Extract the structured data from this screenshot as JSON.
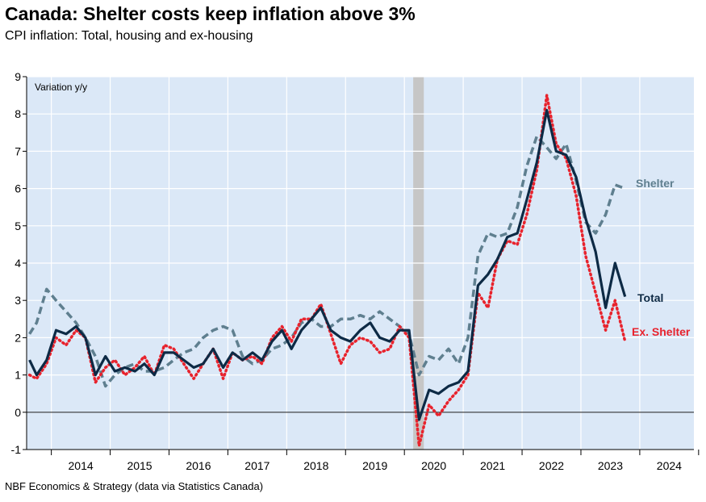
{
  "title": "Canada: Shelter costs keep inflation above 3%",
  "subtitle": "CPI inflation: Total, housing and ex-housing",
  "source": "NBF Economics & Strategy (data via Statistics Canada)",
  "colors": {
    "plot_background": "#dbe8f7",
    "recession_band": "#c6c6c6",
    "total": "#0d2a45",
    "shelter": "#5f7f8f",
    "ex_shelter": "#e8232d"
  },
  "chart_data": {
    "type": "line",
    "unit_label": "Variation y/y",
    "ylim": [
      -1,
      9
    ],
    "yticks": [
      "-1",
      "0",
      "1",
      "2",
      "3",
      "4",
      "5",
      "6",
      "7",
      "8",
      "9"
    ],
    "xlim": [
      2013.58,
      2024.92
    ],
    "xticks": [
      "2014",
      "2015",
      "2016",
      "2017",
      "2018",
      "2019",
      "2020",
      "2021",
      "2022",
      "2023",
      "2024"
    ],
    "grid": true,
    "shaded_period": [
      2020.15,
      2020.33
    ],
    "series": [
      {
        "name": "Total",
        "style": "solid",
        "x": [
          2013.63,
          2013.75,
          2013.92,
          2014.08,
          2014.25,
          2014.42,
          2014.58,
          2014.75,
          2014.92,
          2015.08,
          2015.25,
          2015.42,
          2015.58,
          2015.75,
          2015.92,
          2016.08,
          2016.25,
          2016.42,
          2016.58,
          2016.75,
          2016.92,
          2017.08,
          2017.25,
          2017.42,
          2017.58,
          2017.75,
          2017.92,
          2018.08,
          2018.25,
          2018.42,
          2018.58,
          2018.75,
          2018.92,
          2019.08,
          2019.25,
          2019.42,
          2019.58,
          2019.75,
          2019.92,
          2020.08,
          2020.25,
          2020.42,
          2020.58,
          2020.75,
          2020.92,
          2021.08,
          2021.25,
          2021.42,
          2021.58,
          2021.75,
          2021.92,
          2022.08,
          2022.25,
          2022.42,
          2022.58,
          2022.75,
          2022.92,
          2023.08,
          2023.25,
          2023.42,
          2023.58,
          2023.75
        ],
        "y": [
          1.4,
          1.0,
          1.4,
          2.2,
          2.1,
          2.3,
          2.0,
          1.0,
          1.5,
          1.1,
          1.2,
          1.1,
          1.3,
          1.0,
          1.6,
          1.6,
          1.4,
          1.2,
          1.3,
          1.7,
          1.2,
          1.6,
          1.4,
          1.6,
          1.4,
          1.9,
          2.2,
          1.7,
          2.2,
          2.5,
          2.8,
          2.2,
          2.0,
          1.9,
          2.2,
          2.4,
          2.0,
          1.9,
          2.2,
          2.2,
          -0.2,
          0.6,
          0.5,
          0.7,
          0.8,
          1.1,
          3.4,
          3.7,
          4.1,
          4.7,
          4.8,
          5.7,
          6.7,
          8.1,
          7.0,
          6.9,
          6.3,
          5.2,
          4.3,
          2.8,
          4.0,
          3.1
        ]
      },
      {
        "name": "Shelter",
        "style": "dashed",
        "x": [
          2013.63,
          2013.75,
          2013.92,
          2014.08,
          2014.25,
          2014.42,
          2014.58,
          2014.75,
          2014.92,
          2015.08,
          2015.25,
          2015.42,
          2015.58,
          2015.75,
          2015.92,
          2016.08,
          2016.25,
          2016.42,
          2016.58,
          2016.75,
          2016.92,
          2017.08,
          2017.25,
          2017.42,
          2017.58,
          2017.75,
          2017.92,
          2018.08,
          2018.25,
          2018.42,
          2018.58,
          2018.75,
          2018.92,
          2019.08,
          2019.25,
          2019.42,
          2019.58,
          2019.75,
          2019.92,
          2020.08,
          2020.25,
          2020.42,
          2020.58,
          2020.75,
          2020.92,
          2021.08,
          2021.25,
          2021.42,
          2021.58,
          2021.75,
          2021.92,
          2022.08,
          2022.25,
          2022.42,
          2022.58,
          2022.75,
          2022.92,
          2023.08,
          2023.25,
          2023.42,
          2023.58,
          2023.75
        ],
        "y": [
          2.1,
          2.4,
          3.3,
          3.0,
          2.7,
          2.4,
          2.0,
          1.5,
          0.7,
          1.0,
          1.2,
          1.3,
          1.1,
          1.1,
          1.2,
          1.4,
          1.6,
          1.7,
          2.0,
          2.2,
          2.3,
          2.2,
          1.5,
          1.3,
          1.4,
          1.7,
          1.8,
          2.0,
          2.4,
          2.5,
          2.3,
          2.3,
          2.5,
          2.5,
          2.6,
          2.5,
          2.7,
          2.5,
          2.3,
          2.1,
          1.0,
          1.5,
          1.4,
          1.7,
          1.3,
          2.0,
          4.2,
          4.8,
          4.7,
          4.8,
          5.5,
          6.6,
          7.4,
          7.1,
          6.8,
          7.2,
          6.2,
          5.1,
          4.8,
          5.3,
          6.1,
          6.0
        ]
      },
      {
        "name": "Ex. Shelter",
        "style": "dotted",
        "x": [
          2013.63,
          2013.75,
          2013.92,
          2014.08,
          2014.25,
          2014.42,
          2014.58,
          2014.75,
          2014.92,
          2015.08,
          2015.25,
          2015.42,
          2015.58,
          2015.75,
          2015.92,
          2016.08,
          2016.25,
          2016.42,
          2016.58,
          2016.75,
          2016.92,
          2017.08,
          2017.25,
          2017.42,
          2017.58,
          2017.75,
          2017.92,
          2018.08,
          2018.25,
          2018.42,
          2018.58,
          2018.75,
          2018.92,
          2019.08,
          2019.25,
          2019.42,
          2019.58,
          2019.75,
          2019.92,
          2020.08,
          2020.25,
          2020.42,
          2020.58,
          2020.75,
          2020.92,
          2021.08,
          2021.25,
          2021.42,
          2021.58,
          2021.75,
          2021.92,
          2022.08,
          2022.25,
          2022.42,
          2022.58,
          2022.75,
          2022.92,
          2023.08,
          2023.25,
          2023.42,
          2023.58,
          2023.75
        ],
        "y": [
          1.0,
          0.9,
          1.3,
          2.0,
          1.8,
          2.2,
          2.0,
          0.8,
          1.2,
          1.4,
          1.0,
          1.2,
          1.5,
          1.0,
          1.8,
          1.7,
          1.3,
          0.9,
          1.3,
          1.7,
          0.9,
          1.6,
          1.4,
          1.5,
          1.3,
          2.0,
          2.3,
          1.9,
          2.5,
          2.5,
          2.9,
          2.1,
          1.3,
          1.8,
          2.0,
          1.9,
          1.6,
          1.7,
          2.3,
          2.0,
          -0.9,
          0.2,
          -0.1,
          0.3,
          0.6,
          1.0,
          3.2,
          2.8,
          4.1,
          4.6,
          4.5,
          5.3,
          6.5,
          8.5,
          7.2,
          6.8,
          5.8,
          4.2,
          3.2,
          2.2,
          3.0,
          1.9
        ]
      }
    ]
  }
}
